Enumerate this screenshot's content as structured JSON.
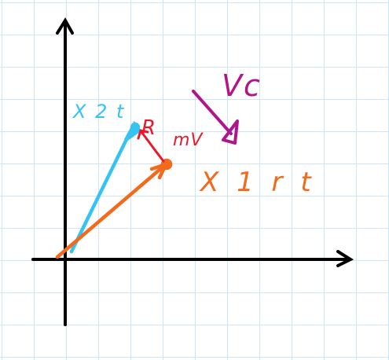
{
  "labels": {
    "x2_label": "X 2 t",
    "r_label": "R",
    "mv_label": "mV",
    "vc_label": "Vc",
    "x1_label": "X 1 r t"
  },
  "colors": {
    "axes": "#000000",
    "grid": "#cfe6f2",
    "x2_vector": "#35c4f2",
    "x1_vector": "#f26a1b",
    "r_vector": "#e8192c",
    "v_vector": "#b0168a"
  }
}
